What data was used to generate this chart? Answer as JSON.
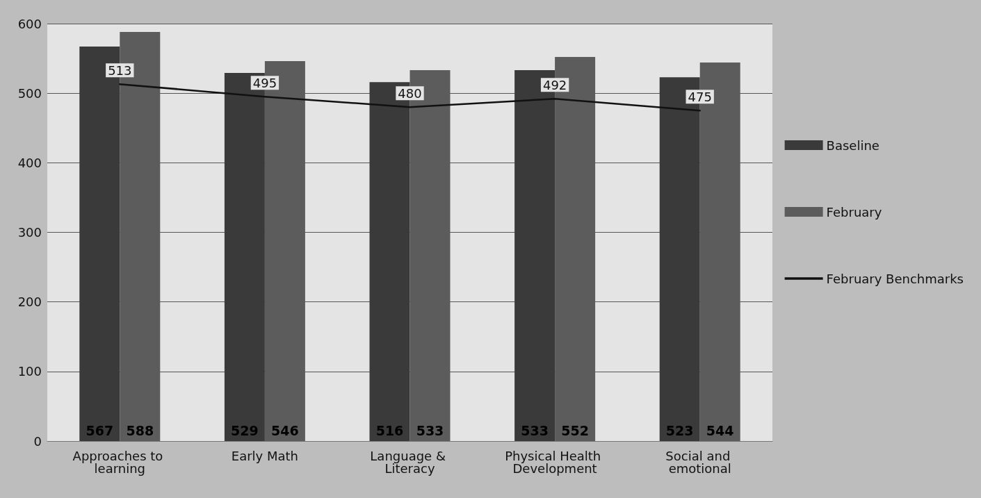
{
  "chart_data": {
    "type": "bar",
    "categories": [
      "Approaches to learning",
      "Early Math",
      "Language & Literacy",
      "Physical Health Development",
      "Social and emotional"
    ],
    "series": [
      {
        "name": "Baseline",
        "color": "#3a3a3a",
        "values": [
          567,
          529,
          516,
          533,
          523
        ]
      },
      {
        "name": "February",
        "color": "#5c5c5c",
        "values": [
          588,
          546,
          533,
          552,
          544
        ]
      },
      {
        "name": "February Benchmarks",
        "type": "line",
        "color": "#111111",
        "values": [
          513,
          495,
          480,
          492,
          475
        ],
        "marker": "none"
      }
    ],
    "ylim": [
      0,
      600
    ],
    "yticks": [
      0,
      100,
      200,
      300,
      400,
      500,
      600
    ],
    "grid": "y",
    "legend": "right",
    "data_labels": true
  }
}
